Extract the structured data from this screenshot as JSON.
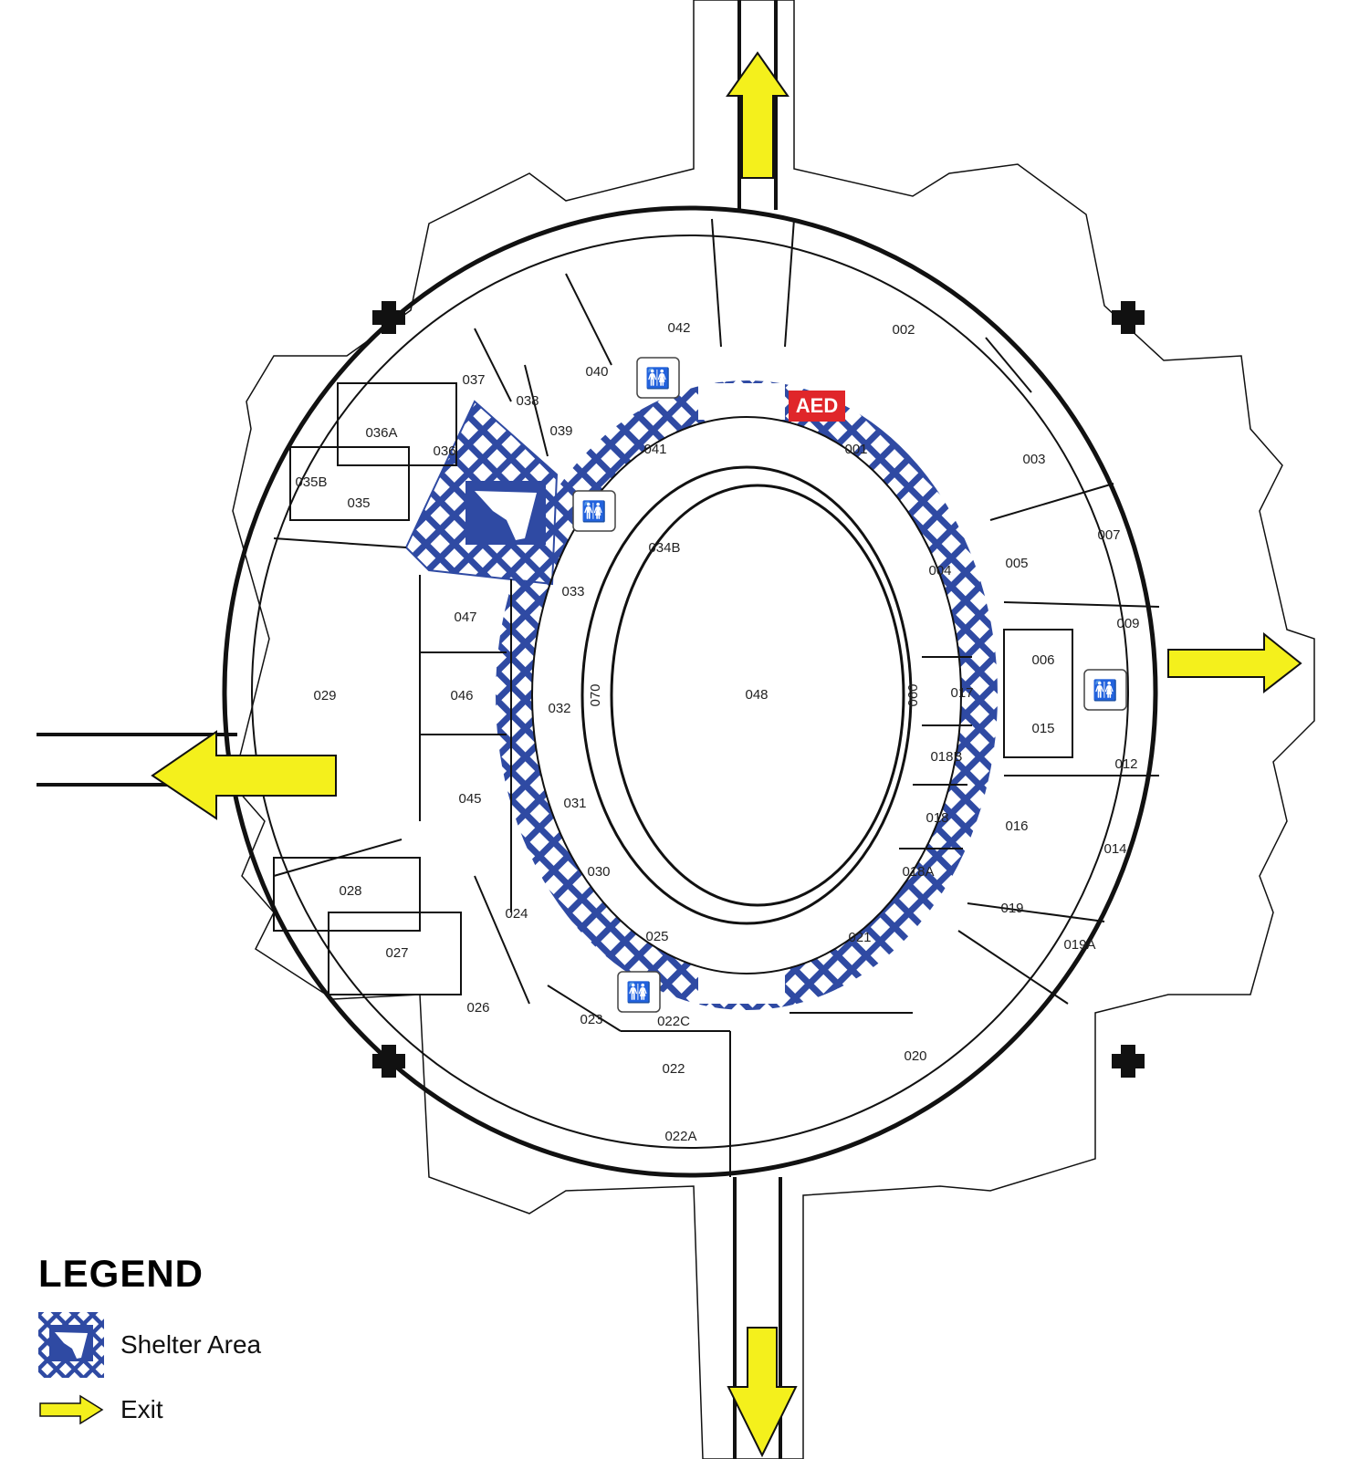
{
  "map": {
    "rooms": [
      {
        "id": "002",
        "label": "002"
      },
      {
        "id": "001",
        "label": "001"
      },
      {
        "id": "003",
        "label": "003"
      },
      {
        "id": "004",
        "label": "004"
      },
      {
        "id": "005",
        "label": "005"
      },
      {
        "id": "006",
        "label": "006"
      },
      {
        "id": "007",
        "label": "007"
      },
      {
        "id": "009",
        "label": "009"
      },
      {
        "id": "012",
        "label": "012"
      },
      {
        "id": "014",
        "label": "014"
      },
      {
        "id": "015",
        "label": "015"
      },
      {
        "id": "016",
        "label": "016"
      },
      {
        "id": "017",
        "label": "017"
      },
      {
        "id": "018",
        "label": "018"
      },
      {
        "id": "018A",
        "label": "018A"
      },
      {
        "id": "018B",
        "label": "018B"
      },
      {
        "id": "019",
        "label": "019"
      },
      {
        "id": "019A",
        "label": "019A"
      },
      {
        "id": "020",
        "label": "020"
      },
      {
        "id": "021",
        "label": "021"
      },
      {
        "id": "022",
        "label": "022"
      },
      {
        "id": "022A",
        "label": "022A"
      },
      {
        "id": "022C",
        "label": "022C"
      },
      {
        "id": "023",
        "label": "023"
      },
      {
        "id": "024",
        "label": "024"
      },
      {
        "id": "025",
        "label": "025"
      },
      {
        "id": "026",
        "label": "026"
      },
      {
        "id": "027",
        "label": "027"
      },
      {
        "id": "028",
        "label": "028"
      },
      {
        "id": "029",
        "label": "029"
      },
      {
        "id": "030",
        "label": "030"
      },
      {
        "id": "031",
        "label": "031"
      },
      {
        "id": "032",
        "label": "032"
      },
      {
        "id": "033",
        "label": "033"
      },
      {
        "id": "034B",
        "label": "034B"
      },
      {
        "id": "035",
        "label": "035"
      },
      {
        "id": "035B",
        "label": "035B"
      },
      {
        "id": "036",
        "label": "036"
      },
      {
        "id": "036A",
        "label": "036A"
      },
      {
        "id": "037",
        "label": "037"
      },
      {
        "id": "038",
        "label": "038"
      },
      {
        "id": "039",
        "label": "039"
      },
      {
        "id": "040",
        "label": "040"
      },
      {
        "id": "041",
        "label": "041"
      },
      {
        "id": "042",
        "label": "042"
      },
      {
        "id": "045",
        "label": "045"
      },
      {
        "id": "046",
        "label": "046"
      },
      {
        "id": "047",
        "label": "047"
      },
      {
        "id": "048",
        "label": "048"
      },
      {
        "id": "060",
        "label": "060"
      },
      {
        "id": "070",
        "label": "070"
      }
    ],
    "aed_label": "AED",
    "icons": [
      "restroom-icon",
      "tornado-shelter-icon",
      "exit-arrow-icon",
      "column-icon"
    ],
    "colors": {
      "shelter": "#2f4aa3",
      "exit": "#f4f01c",
      "aed": "#e0262a",
      "walls": "#111111"
    }
  },
  "legend": {
    "title": "LEGEND",
    "items": [
      {
        "icon": "shelter-area-icon",
        "label": "Shelter Area"
      },
      {
        "icon": "exit-arrow-icon",
        "label": "Exit"
      }
    ]
  }
}
